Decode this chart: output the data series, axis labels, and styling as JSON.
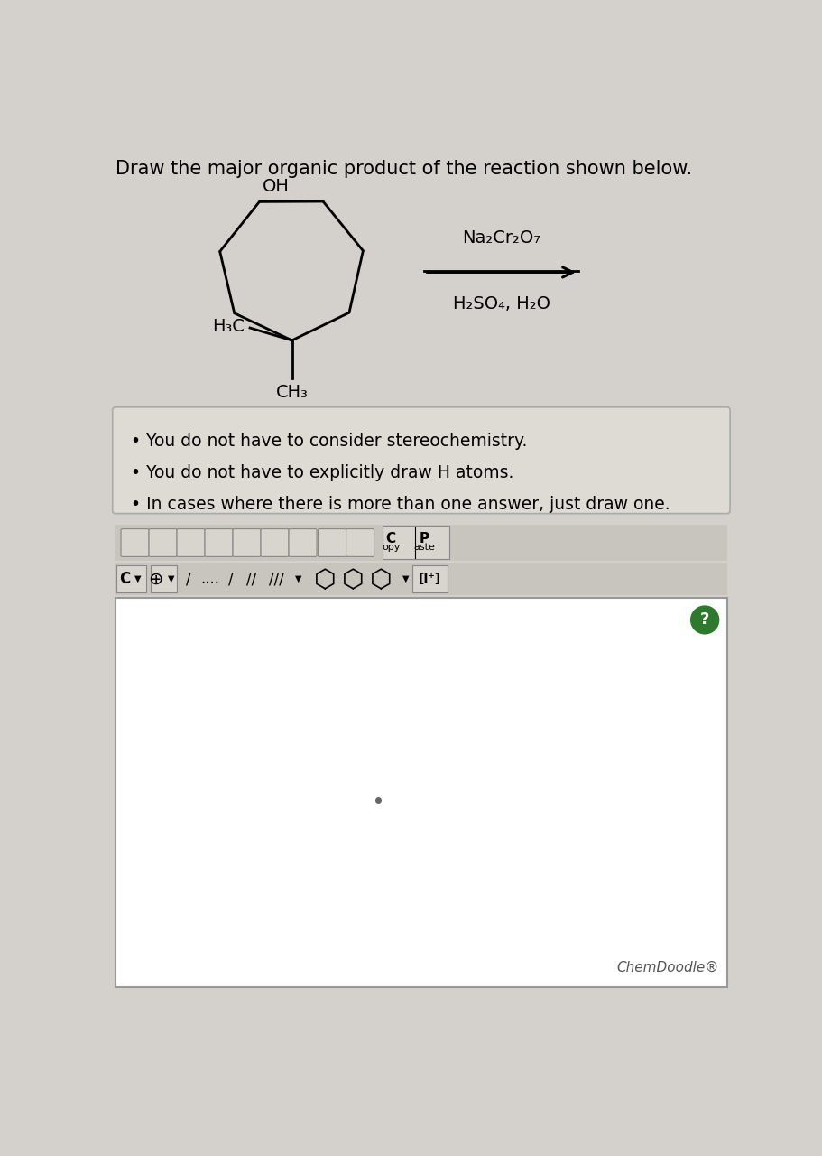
{
  "title": "Draw the major organic product of the reaction shown below.",
  "background_color": "#d4d0cb",
  "bullet_points": [
    "You do not have to consider stereochemistry.",
    "You do not have to explicitly draw H atoms.",
    "In cases where there is more than one answer, just draw one."
  ],
  "reagent_line1": "Na₂Cr₂O₇",
  "reagent_line2": "H₂SO₄, H₂O",
  "label_OH": "OH",
  "label_H3C": "H₃C",
  "label_CH3": "CH₃",
  "chemdoodle_label": "ChemDoodle",
  "drawing_area_bg": "#ffffff",
  "drawing_area_border": "#999999",
  "bullet_box_bg": "#dedad4",
  "bullet_box_border": "#aaaaaa",
  "toolbar_bg": "#c8c4be",
  "arrow_color": "#000000",
  "molecule_color": "#000000",
  "help_circle_color": "#2d7a2d"
}
